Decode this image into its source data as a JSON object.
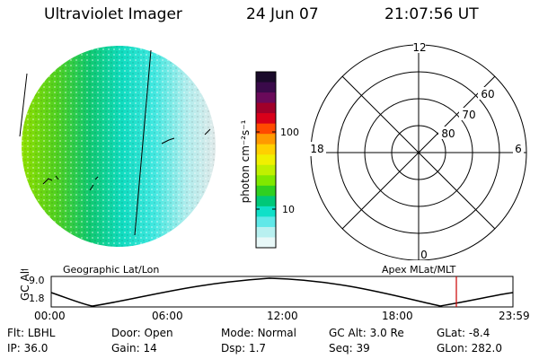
{
  "header": {
    "instrument": "Ultraviolet Imager",
    "date": "24 Jun 07",
    "time": "21:07:56 UT"
  },
  "colorbar": {
    "unit": "photon cm⁻²s⁻¹",
    "ticks": [
      "100",
      "10"
    ],
    "colors": [
      "#1a0a2a",
      "#3a0a4a",
      "#6a0a5a",
      "#a0002a",
      "#d8001a",
      "#ff4a00",
      "#ff9a00",
      "#ffd000",
      "#f0f000",
      "#c0f000",
      "#80e800",
      "#30d020",
      "#00c878",
      "#10e0c8",
      "#60e8e8",
      "#b8f0f0",
      "#e8f8f8"
    ]
  },
  "polar_plot": {
    "mlt_labels": [
      "12",
      "18",
      "6",
      "0"
    ],
    "lat_labels": [
      "60",
      "70",
      "80"
    ]
  },
  "timeline": {
    "left_label": "Geographic Lat/Lon",
    "right_label": "Apex MLat/MLT",
    "y_axis_label": "GC Alt",
    "y_ticks": [
      "9.0",
      "1.8"
    ],
    "x_ticks": [
      "00:00",
      "06:00",
      "12:00",
      "18:00",
      "23:59"
    ],
    "marker_color": "#cc0000"
  },
  "status": {
    "row1": [
      {
        "label": "Flt:",
        "value": "LBHL"
      },
      {
        "label": "Door:",
        "value": "Open"
      },
      {
        "label": "Mode:",
        "value": "Normal"
      },
      {
        "label": "GC Alt:",
        "value": "3.0 Re"
      },
      {
        "label": "GLat:",
        "value": "-8.4"
      }
    ],
    "row2": [
      {
        "label": "IP:",
        "value": "36.0"
      },
      {
        "label": "Gain:",
        "value": "14"
      },
      {
        "label": "Dsp:",
        "value": "1.7"
      },
      {
        "label": "Seq:",
        "value": "39"
      },
      {
        "label": "GLon:",
        "value": "282.0"
      }
    ]
  }
}
